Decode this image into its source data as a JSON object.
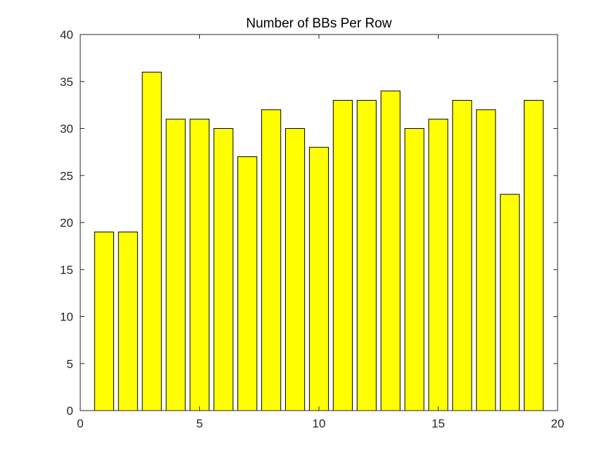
{
  "chart_data": {
    "type": "bar",
    "title": "Number of BBs Per Row",
    "xlabel": "",
    "ylabel": "",
    "categories": [
      1,
      2,
      3,
      4,
      5,
      6,
      7,
      8,
      9,
      10,
      11,
      12,
      13,
      14,
      15,
      16,
      17,
      18,
      19
    ],
    "values": [
      19,
      19,
      36,
      31,
      31,
      30,
      27,
      32,
      30,
      28,
      33,
      33,
      34,
      30,
      31,
      33,
      32,
      23,
      33
    ],
    "xlim": [
      0,
      20
    ],
    "ylim": [
      0,
      40
    ],
    "xticks": [
      0,
      5,
      10,
      15,
      20
    ],
    "yticks": [
      0,
      5,
      10,
      15,
      20,
      25,
      30,
      35,
      40
    ],
    "bar_color": "#ffff00",
    "bar_edge_color": "#000000",
    "grid": false,
    "box": true
  }
}
